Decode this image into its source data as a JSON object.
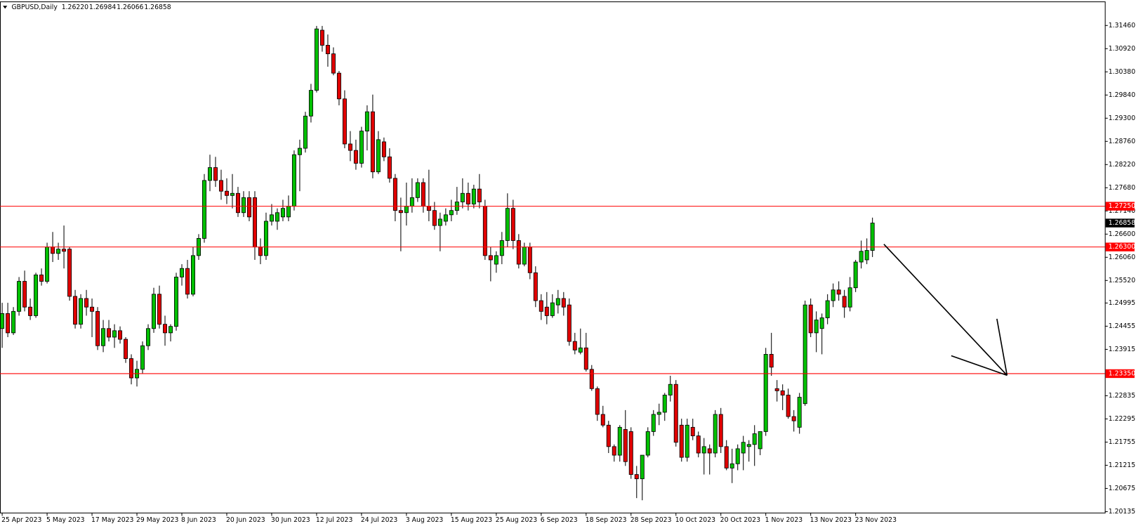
{
  "chart_data": {
    "type": "candlestick",
    "title": "GBPUSD,Daily",
    "ohlc_labels": [
      "1.26220",
      "1.26984",
      "1.26066",
      "1.26858"
    ],
    "categories": [
      "25 Apr 2023",
      null,
      null,
      null,
      null,
      null,
      null,
      null,
      "5 May 2023",
      null,
      null,
      null,
      null,
      null,
      null,
      null,
      "17 May 2023",
      null,
      null,
      null,
      null,
      null,
      null,
      null,
      "29 May 2023",
      null,
      null,
      null,
      null,
      null,
      null,
      null,
      "8 Jun 2023",
      null,
      null,
      null,
      null,
      null,
      null,
      null,
      "20 Jun 2023",
      null,
      null,
      null,
      null,
      null,
      null,
      null,
      "30 Jun 2023",
      null,
      null,
      null,
      null,
      null,
      null,
      null,
      "12 Jul 2023",
      null,
      null,
      null,
      null,
      null,
      null,
      null,
      "24 Jul 2023",
      null,
      null,
      null,
      null,
      null,
      null,
      null,
      "3 Aug 2023",
      null,
      null,
      null,
      null,
      null,
      null,
      null,
      "15 Aug 2023",
      null,
      null,
      null,
      null,
      null,
      null,
      null,
      "25 Aug 2023",
      null,
      null,
      null,
      null,
      null,
      null,
      null,
      "6 Sep 2023",
      null,
      null,
      null,
      null,
      null,
      null,
      null,
      "18 Sep 2023",
      null,
      null,
      null,
      null,
      null,
      null,
      null,
      "28 Sep 2023",
      null,
      null,
      null,
      null,
      null,
      null,
      null,
      "10 Oct 2023",
      null,
      null,
      null,
      null,
      null,
      null,
      null,
      "20 Oct 2023",
      null,
      null,
      null,
      null,
      null,
      null,
      null,
      "1 Nov 2023",
      null,
      null,
      null,
      null,
      null,
      null,
      null,
      "13 Nov 2023",
      null,
      null,
      null,
      null,
      null,
      null,
      null,
      "23 Nov 2023",
      null,
      null,
      null
    ],
    "series": [
      {
        "up_color": "#00c000",
        "down_color": "#e00000",
        "outline_color": "#000000",
        "open": [
          1.244,
          1.2475,
          1.243,
          1.248,
          1.255,
          1.249,
          1.247,
          1.2565,
          1.255,
          1.263,
          1.2615,
          1.2625,
          1.2625,
          1.2515,
          1.245,
          1.251,
          1.249,
          1.248,
          1.24,
          1.244,
          1.242,
          1.2435,
          1.2415,
          1.237,
          1.2325,
          1.2345,
          1.24,
          1.244,
          1.252,
          1.245,
          1.243,
          1.2445,
          1.256,
          1.258,
          1.252,
          1.261,
          1.265,
          1.2785,
          1.2815,
          1.2785,
          1.276,
          1.275,
          1.2755,
          1.271,
          1.2745,
          1.2745,
          1.263,
          1.261,
          1.269,
          1.269,
          1.27,
          1.27,
          1.2725,
          1.2845,
          1.286,
          1.2935,
          1.2995,
          1.3135,
          1.31,
          1.308,
          1.3035,
          1.2975,
          1.287,
          1.2855,
          1.2825,
          1.29,
          1.2945,
          1.2805,
          1.2875,
          1.284,
          1.279,
          1.2715,
          1.271,
          1.2725,
          1.2745,
          1.278,
          1.2725,
          1.2715,
          1.268,
          1.269,
          1.2705,
          1.2715,
          1.2735,
          1.2755,
          1.273,
          1.2765,
          1.2725,
          1.261,
          1.259,
          1.261,
          1.2645,
          1.272,
          1.2645,
          1.259,
          1.263,
          1.257,
          1.2505,
          1.249,
          1.247,
          1.2495,
          1.251,
          1.2495,
          1.241,
          1.2385,
          1.2395,
          1.2345,
          1.23,
          1.224,
          1.2215,
          1.2165,
          1.2145,
          1.2205,
          1.22,
          1.21,
          1.209,
          1.2145,
          1.22,
          1.224,
          1.2245,
          1.2285,
          1.231,
          1.2215,
          1.214,
          1.221,
          1.219,
          1.215,
          1.216,
          1.215,
          1.224,
          1.2165,
          1.2115,
          1.2125,
          1.215,
          1.2165,
          1.217,
          1.216,
          1.22,
          1.238,
          1.23,
          1.2295,
          1.2285,
          1.2235,
          1.221,
          1.2265,
          1.2495,
          1.243,
          1.244,
          1.2465,
          1.2505,
          1.253,
          1.2515,
          1.249,
          1.2535,
          1.2595,
          1.26,
          1.2622
        ],
        "high": [
          1.25,
          1.25,
          1.249,
          1.256,
          1.2575,
          1.251,
          1.257,
          1.258,
          1.264,
          1.2665,
          1.264,
          1.268,
          1.263,
          1.253,
          1.252,
          1.253,
          1.251,
          1.249,
          1.246,
          1.246,
          1.245,
          1.2445,
          1.242,
          1.238,
          1.2365,
          1.241,
          1.245,
          1.2535,
          1.254,
          1.247,
          1.245,
          1.257,
          1.259,
          1.26,
          1.263,
          1.266,
          1.28,
          1.2845,
          1.284,
          1.281,
          1.279,
          1.28,
          1.277,
          1.276,
          1.276,
          1.276,
          1.265,
          1.271,
          1.273,
          1.272,
          1.274,
          1.275,
          1.2855,
          1.288,
          1.2945,
          1.301,
          1.3145,
          1.3145,
          1.3125,
          1.3095,
          1.304,
          1.2995,
          1.29,
          1.288,
          1.291,
          1.296,
          1.2985,
          1.29,
          1.2885,
          1.286,
          1.28,
          1.2745,
          1.278,
          1.279,
          1.279,
          1.279,
          1.281,
          1.2735,
          1.271,
          1.272,
          1.274,
          1.277,
          1.279,
          1.278,
          1.2775,
          1.28,
          1.274,
          1.263,
          1.262,
          1.2665,
          1.2755,
          1.274,
          1.266,
          1.264,
          1.264,
          1.2585,
          1.252,
          1.2525,
          1.252,
          1.253,
          1.2525,
          1.251,
          1.243,
          1.244,
          1.243,
          1.2355,
          1.2305,
          1.226,
          1.2225,
          1.217,
          1.2215,
          1.225,
          1.221,
          1.212,
          1.2145,
          1.221,
          1.225,
          1.2265,
          1.229,
          1.233,
          1.232,
          1.223,
          1.223,
          1.223,
          1.22,
          1.2185,
          1.217,
          1.225,
          1.2255,
          1.218,
          1.216,
          1.217,
          1.219,
          1.218,
          1.2215,
          1.22,
          1.2395,
          1.243,
          1.232,
          1.231,
          1.23,
          1.225,
          1.229,
          1.2505,
          1.251,
          1.248,
          1.2475,
          1.252,
          1.2545,
          1.255,
          1.253,
          1.256,
          1.26,
          1.2645,
          1.265,
          1.26984
        ],
        "low": [
          1.2395,
          1.242,
          1.2425,
          1.247,
          1.248,
          1.246,
          1.2465,
          1.254,
          1.2545,
          1.2595,
          1.26,
          1.258,
          1.2505,
          1.244,
          1.244,
          1.247,
          1.242,
          1.239,
          1.2385,
          1.241,
          1.2395,
          1.2405,
          1.236,
          1.231,
          1.2305,
          1.2335,
          1.239,
          1.243,
          1.244,
          1.24,
          1.241,
          1.2435,
          1.254,
          1.251,
          1.2515,
          1.26,
          1.264,
          1.276,
          1.277,
          1.274,
          1.273,
          1.272,
          1.27,
          1.27,
          1.269,
          1.26,
          1.259,
          1.26,
          1.268,
          1.267,
          1.269,
          1.269,
          1.2715,
          1.276,
          1.285,
          1.292,
          1.299,
          1.3085,
          1.305,
          1.303,
          1.296,
          1.286,
          1.283,
          1.281,
          1.2815,
          1.2855,
          1.279,
          1.28,
          1.283,
          1.278,
          1.269,
          1.262,
          1.268,
          1.271,
          1.2735,
          1.271,
          1.269,
          1.267,
          1.262,
          1.268,
          1.269,
          1.2705,
          1.272,
          1.2715,
          1.272,
          1.272,
          1.26,
          1.255,
          1.257,
          1.259,
          1.263,
          1.2625,
          1.258,
          1.2585,
          1.2555,
          1.249,
          1.246,
          1.245,
          1.2465,
          1.2475,
          1.247,
          1.24,
          1.238,
          1.238,
          1.234,
          1.2295,
          1.2225,
          1.221,
          1.215,
          1.213,
          1.213,
          1.212,
          1.209,
          1.2045,
          1.204,
          1.214,
          1.219,
          1.2215,
          1.2225,
          1.227,
          1.2165,
          1.213,
          1.213,
          1.218,
          1.214,
          1.21,
          1.21,
          1.214,
          1.215,
          1.211,
          1.208,
          1.211,
          1.211,
          1.213,
          1.212,
          1.2145,
          1.219,
          1.233,
          1.227,
          1.225,
          1.223,
          1.22,
          1.2195,
          1.226,
          1.242,
          1.2385,
          1.238,
          1.245,
          1.249,
          1.2505,
          1.2465,
          1.248,
          1.2525,
          1.258,
          1.259,
          1.26066
        ],
        "close": [
          1.2475,
          1.243,
          1.248,
          1.255,
          1.249,
          1.247,
          1.2565,
          1.255,
          1.263,
          1.2615,
          1.2625,
          1.262,
          1.2515,
          1.245,
          1.251,
          1.249,
          1.248,
          1.24,
          1.244,
          1.242,
          1.2435,
          1.2415,
          1.237,
          1.2325,
          1.2345,
          1.24,
          1.244,
          1.252,
          1.245,
          1.243,
          1.2445,
          1.256,
          1.258,
          1.252,
          1.261,
          1.265,
          1.2785,
          1.2815,
          1.2785,
          1.276,
          1.275,
          1.2755,
          1.271,
          1.2745,
          1.27,
          1.263,
          1.261,
          1.269,
          1.2705,
          1.271,
          1.272,
          1.2725,
          1.2845,
          1.286,
          1.2935,
          1.2995,
          1.3138,
          1.31,
          1.308,
          1.3035,
          1.2975,
          1.287,
          1.2855,
          1.2825,
          1.29,
          1.2945,
          1.2805,
          1.288,
          1.284,
          1.279,
          1.2715,
          1.271,
          1.2725,
          1.2745,
          1.278,
          1.2725,
          1.2715,
          1.268,
          1.2695,
          1.2705,
          1.2715,
          1.2735,
          1.2755,
          1.273,
          1.2765,
          1.2735,
          1.261,
          1.26,
          1.261,
          1.2645,
          1.272,
          1.2645,
          1.259,
          1.263,
          1.257,
          1.2505,
          1.248,
          1.247,
          1.25,
          1.251,
          1.249,
          1.241,
          1.239,
          1.2395,
          1.2345,
          1.23,
          1.224,
          1.2215,
          1.2165,
          1.2145,
          1.221,
          1.213,
          1.21,
          1.209,
          1.2145,
          1.22,
          1.224,
          1.2245,
          1.2285,
          1.231,
          1.2175,
          1.214,
          1.2215,
          1.219,
          1.215,
          1.2165,
          1.215,
          1.224,
          1.2165,
          1.2115,
          1.2125,
          1.216,
          1.2175,
          1.217,
          1.2195,
          1.22,
          1.238,
          1.235,
          1.2295,
          1.2285,
          1.2235,
          1.2225,
          1.228,
          1.2495,
          1.243,
          1.246,
          1.2465,
          1.2505,
          1.253,
          1.252,
          1.249,
          1.2535,
          1.2595,
          1.262,
          1.2622,
          1.26858
        ]
      }
    ],
    "ylim": [
      1.2007,
      1.3202
    ],
    "yticks": [
      {
        "value": 1.3146,
        "label": "1.31460"
      },
      {
        "value": 1.3092,
        "label": "1.30920"
      },
      {
        "value": 1.3038,
        "label": "1.30380"
      },
      {
        "value": 1.2984,
        "label": "1.29840"
      },
      {
        "value": 1.293,
        "label": "1.29300"
      },
      {
        "value": 1.2876,
        "label": "1.28760"
      },
      {
        "value": 1.2822,
        "label": "1.28220"
      },
      {
        "value": 1.2768,
        "label": "1.27680"
      },
      {
        "value": 1.2714,
        "label": "1.27140"
      },
      {
        "value": 1.266,
        "label": "1.26600"
      },
      {
        "value": 1.2606,
        "label": "1.26060"
      },
      {
        "value": 1.2552,
        "label": "1.25520"
      },
      {
        "value": 1.24995,
        "label": "1.24995"
      },
      {
        "value": 1.24455,
        "label": "1.24455"
      },
      {
        "value": 1.23915,
        "label": "1.23915"
      },
      {
        "value": 1.22835,
        "label": "1.22835"
      },
      {
        "value": 1.22295,
        "label": "1.22295"
      },
      {
        "value": 1.21755,
        "label": "1.21755"
      },
      {
        "value": 1.21215,
        "label": "1.21215"
      },
      {
        "value": 1.20675,
        "label": "1.20675"
      },
      {
        "value": 1.20135,
        "label": "1.20135"
      }
    ],
    "hlines": [
      {
        "value": 1.2725,
        "label": "1.27250"
      },
      {
        "value": 1.263,
        "label": "1.26300"
      },
      {
        "value": 1.2335,
        "label": "1.23350"
      }
    ],
    "hline_color": "#ff0000",
    "last_price": {
      "value": 1.26858,
      "label": "1.26858"
    },
    "grid": false
  }
}
